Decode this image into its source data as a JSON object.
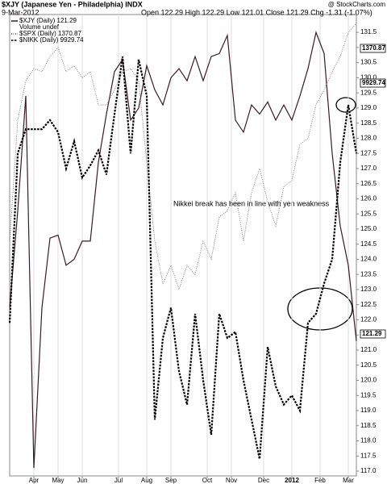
{
  "chart_data": {
    "type": "line",
    "title": "$XJY (Japanese Yen - Philadelphia) INDX",
    "date": "9-Mar-2012",
    "quote": "Open 122.29 High 122.29 Low 121.01 Close 121.29 Chg -1.31 (-1.07%)",
    "credit": "@ StockCharts.com",
    "legend_note": "Volume undef",
    "annotation": "Nikkei break has been in line with yen weakness",
    "side_tags": [
      "1370.87",
      "9929.74",
      "121.29"
    ],
    "grid": "x",
    "x": [
      0,
      2,
      4,
      6,
      8,
      10,
      12,
      14,
      16,
      18,
      20,
      22,
      24,
      26,
      28,
      30,
      32,
      34,
      36,
      38,
      40,
      42,
      44,
      46,
      48,
      50,
      52,
      54,
      56,
      58,
      60,
      62,
      64,
      66,
      68,
      70,
      72,
      74,
      76,
      78,
      80,
      82,
      84,
      86
    ],
    "xlim": [
      0,
      86
    ],
    "xticks": [
      {
        "value": 6,
        "label": "Apr"
      },
      {
        "value": 12,
        "label": "May"
      },
      {
        "value": 18,
        "label": "Jun"
      },
      {
        "value": 27,
        "label": "Jul"
      },
      {
        "value": 34,
        "label": "Aug"
      },
      {
        "value": 40,
        "label": "Sep"
      },
      {
        "value": 49,
        "label": "Oct"
      },
      {
        "value": 55,
        "label": "Nov"
      },
      {
        "value": 63,
        "label": "Dec"
      },
      {
        "value": 70,
        "label": "2012"
      },
      {
        "value": 77,
        "label": "Feb"
      },
      {
        "value": 84,
        "label": "Mar"
      }
    ],
    "ylim": [
      116.84,
      132.09
    ],
    "yticks": [
      {
        "value": 117,
        "label": "117.0"
      },
      {
        "value": 117.5,
        "label": "117.5"
      },
      {
        "value": 118,
        "label": "118.0"
      },
      {
        "value": 118.5,
        "label": "118.5"
      },
      {
        "value": 119,
        "label": "119.0"
      },
      {
        "value": 119.5,
        "label": "119.5"
      },
      {
        "value": 120,
        "label": "120.0"
      },
      {
        "value": 120.5,
        "label": "120.5"
      },
      {
        "value": 121,
        "label": "121.0"
      },
      {
        "value": 121.5,
        "label": "121.5"
      },
      {
        "value": 122,
        "label": "122.0"
      },
      {
        "value": 122.5,
        "label": "122.5"
      },
      {
        "value": 123,
        "label": "123.0"
      },
      {
        "value": 123.5,
        "label": "123.5"
      },
      {
        "value": 124,
        "label": "124.0"
      },
      {
        "value": 124.5,
        "label": "124.5"
      },
      {
        "value": 125,
        "label": "125.0"
      },
      {
        "value": 125.5,
        "label": "125.5"
      },
      {
        "value": 126,
        "label": "126.0"
      },
      {
        "value": 126.5,
        "label": "126.5"
      },
      {
        "value": 127,
        "label": "127.0"
      },
      {
        "value": 127.5,
        "label": "127.5"
      },
      {
        "value": 128,
        "label": "128.0"
      },
      {
        "value": 128.5,
        "label": "128.5"
      },
      {
        "value": 129,
        "label": "129.0"
      },
      {
        "value": 129.5,
        "label": "129.5"
      },
      {
        "value": 130,
        "label": "130.0"
      },
      {
        "value": 130.5,
        "label": "130.5"
      },
      {
        "value": 131,
        "label": "131.0"
      },
      {
        "value": 131.5,
        "label": "131.5"
      }
    ],
    "series": [
      {
        "name": "$XJY (Daily) 121.29",
        "color": "#3a1a24",
        "style": "solid",
        "values": [
          122.4,
          125.6,
          129.4,
          117.1,
          122.4,
          124.7,
          124.8,
          123.8,
          124.0,
          124.6,
          124.6,
          127.2,
          128.8,
          130.2,
          130.6,
          128.6,
          129.0,
          130.4,
          129.6,
          129.1,
          130.0,
          130.3,
          129.9,
          130.7,
          129.9,
          130.7,
          130.8,
          131.4,
          128.6,
          128.2,
          129.1,
          128.8,
          129.2,
          128.6,
          129.1,
          128.6,
          129.4,
          130.3,
          131.5,
          130.8,
          127.5,
          125.1,
          123.8,
          121.3
        ]
      },
      {
        "name": "$SPX (Daily) 1370.87",
        "color": "#666666",
        "style": "dotted",
        "values": [
          124.6,
          128.6,
          129.9,
          130.3,
          130.2,
          130.7,
          131.0,
          130.2,
          130.4,
          130.0,
          130.2,
          129.1,
          129.1,
          129.6,
          130.2,
          130.3,
          129.9,
          127.2,
          124.6,
          123.2,
          123.8,
          123.0,
          123.8,
          123.5,
          124.6,
          124.0,
          125.4,
          125.6,
          126.2,
          124.6,
          126.2,
          127.0,
          125.9,
          125.1,
          126.4,
          126.6,
          127.8,
          128.0,
          129.1,
          129.6,
          130.2,
          130.7,
          131.5,
          131.8
        ]
      },
      {
        "name": "$NIKK (Daily) 9929.74",
        "color": "#000000",
        "style": "dashed",
        "values": [
          121.9,
          127.5,
          128.3,
          128.3,
          128.3,
          128.6,
          128.2,
          127.0,
          127.9,
          126.7,
          127.1,
          127.6,
          126.8,
          128.8,
          130.7,
          127.5,
          130.6,
          129.4,
          118.7,
          121.4,
          122.4,
          120.3,
          119.2,
          122.2,
          120.0,
          118.2,
          122.2,
          121.4,
          121.6,
          120.0,
          118.7,
          117.4,
          121.1,
          119.8,
          119.2,
          119.5,
          119.0,
          121.9,
          122.2,
          123.2,
          124.0,
          127.2,
          129.1,
          127.5
        ]
      }
    ]
  }
}
